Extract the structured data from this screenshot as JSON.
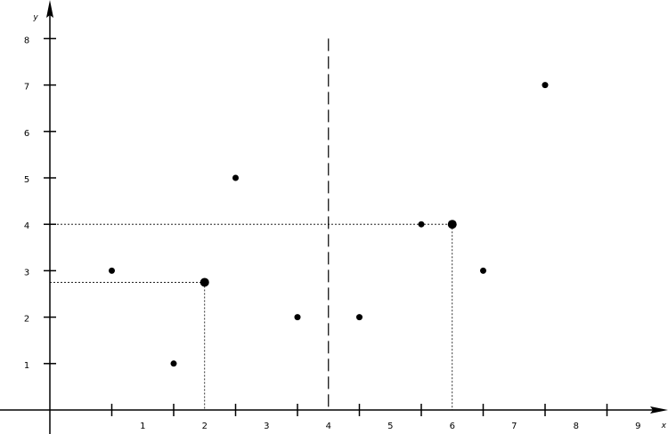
{
  "chart_data": {
    "type": "scatter",
    "title": "",
    "xlabel": "x",
    "ylabel": "y",
    "xlim": [
      0,
      9.9
    ],
    "ylim": [
      0,
      8.8
    ],
    "grid": false,
    "legend": "none",
    "x_ticks": [
      1,
      2,
      3,
      4,
      5,
      6,
      7,
      8,
      9
    ],
    "y_ticks": [
      1,
      2,
      3,
      4,
      5,
      6,
      7,
      8
    ],
    "points": [
      {
        "x": 1,
        "y": 3
      },
      {
        "x": 2,
        "y": 1
      },
      {
        "x": 3,
        "y": 5
      },
      {
        "x": 4,
        "y": 2
      },
      {
        "x": 5,
        "y": 2
      },
      {
        "x": 6,
        "y": 4
      },
      {
        "x": 7,
        "y": 3
      },
      {
        "x": 8,
        "y": 7
      }
    ],
    "highlight_points": [
      {
        "x": 2.5,
        "y": 2.75
      },
      {
        "x": 6.5,
        "y": 4
      }
    ],
    "vertical_dashed_line": {
      "x": 4.5,
      "y_top": 8
    },
    "colors": {
      "axis": "#000000",
      "point": "#000000",
      "guide": "#000000"
    }
  }
}
